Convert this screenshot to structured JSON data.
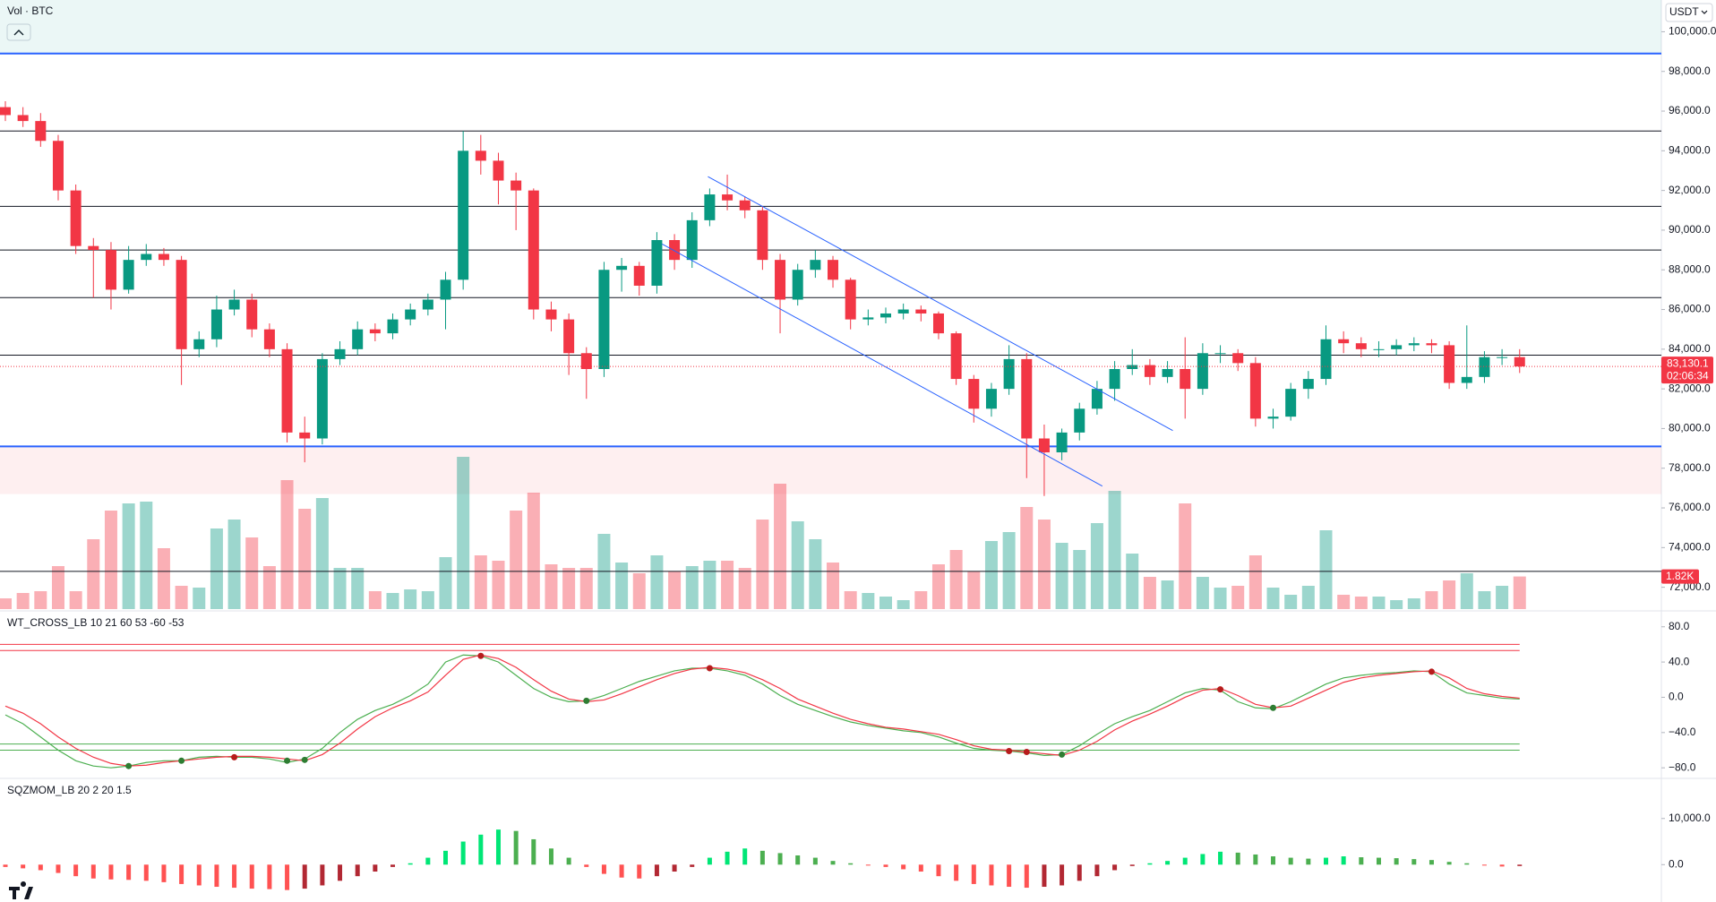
{
  "chart_data": [
    {
      "type": "candlestick",
      "title": "Vol · BTC",
      "currency": "USDT",
      "open": [
        96200,
        95800,
        95500,
        94500,
        92000,
        89200,
        89000,
        87000,
        88500,
        88800,
        88500,
        84000,
        84500,
        86000,
        86500,
        85000,
        84000,
        79800,
        79500,
        83500,
        84000,
        85000,
        84800,
        85500,
        86000,
        86500,
        87500,
        94000,
        93500,
        92500,
        92000,
        86000,
        85500,
        83800,
        83000,
        88000,
        88200,
        87200,
        89500,
        88500,
        90500,
        91800,
        91500,
        91000,
        88500,
        86500,
        88000,
        88500,
        87500,
        85500,
        85600,
        85800,
        86000,
        85800,
        84800,
        82500,
        81000,
        82000,
        83500,
        79500,
        78800,
        79800,
        81000,
        82000,
        83000,
        83200,
        82600,
        83000,
        82000,
        83800,
        83800,
        83300,
        80500,
        80600,
        82000,
        82500,
        84500,
        84300,
        84000,
        84000,
        84200,
        84300,
        84200,
        82300,
        82600,
        83600,
        83600
      ],
      "high": [
        96500,
        96200,
        95900,
        94800,
        92300,
        89600,
        89400,
        89200,
        89300,
        89100,
        88700,
        84900,
        86700,
        87000,
        86800,
        85300,
        84300,
        80600,
        83800,
        84400,
        85400,
        85300,
        85800,
        86300,
        86800,
        87900,
        95000,
        94800,
        93900,
        92900,
        92100,
        86400,
        85800,
        84100,
        88400,
        88600,
        88400,
        89900,
        89800,
        90900,
        92100,
        92800,
        91700,
        91200,
        88800,
        88300,
        89000,
        88700,
        87600,
        86000,
        86100,
        86300,
        86200,
        85900,
        84900,
        82700,
        82300,
        84200,
        83800,
        80200,
        80000,
        81300,
        82400,
        83400,
        84000,
        83500,
        83400,
        84600,
        84300,
        84200,
        84000,
        83600,
        81000,
        82300,
        82900,
        85200,
        84900,
        84600,
        84400,
        84500,
        84600,
        84500,
        84400,
        85200,
        83900,
        84000,
        84000
      ],
      "low": [
        95500,
        95200,
        94200,
        91500,
        88800,
        86600,
        86000,
        86800,
        88200,
        88200,
        82200,
        83600,
        84100,
        85700,
        84600,
        83600,
        79300,
        78300,
        79200,
        83200,
        83700,
        84400,
        84500,
        85200,
        85700,
        85000,
        87000,
        92800,
        91300,
        90000,
        85500,
        84900,
        82700,
        81500,
        82600,
        86900,
        86700,
        86800,
        88000,
        88100,
        90200,
        91000,
        90600,
        88000,
        84800,
        86200,
        87600,
        87100,
        85000,
        85200,
        85300,
        85500,
        85400,
        84500,
        82200,
        80300,
        80600,
        81700,
        77500,
        76600,
        78400,
        79400,
        80700,
        81400,
        82700,
        82200,
        82300,
        80500,
        81700,
        83300,
        82900,
        80100,
        80000,
        80400,
        81500,
        82200,
        83800,
        83600,
        83600,
        83700,
        83900,
        83800,
        82000,
        82000,
        82300,
        83200,
        82800
      ],
      "close": [
        95800,
        95500,
        94500,
        92000,
        89200,
        89000,
        87000,
        88500,
        88800,
        88500,
        84000,
        84500,
        86000,
        86500,
        85000,
        84000,
        79800,
        79500,
        83500,
        84000,
        85000,
        84800,
        85500,
        86000,
        86500,
        87500,
        94000,
        93500,
        92500,
        92000,
        86000,
        85500,
        83800,
        83000,
        88000,
        88200,
        87200,
        89500,
        88500,
        90500,
        91800,
        91500,
        91000,
        88500,
        86500,
        88000,
        88500,
        87500,
        85500,
        85600,
        85800,
        86000,
        85800,
        84800,
        82500,
        81000,
        82000,
        83500,
        79500,
        78800,
        79800,
        81000,
        82000,
        83000,
        83200,
        82600,
        83000,
        82000,
        83800,
        83800,
        83300,
        80500,
        80600,
        82000,
        82500,
        84500,
        84300,
        84000,
        84000,
        84200,
        84300,
        84200,
        82300,
        82600,
        83600,
        83600,
        83130.1
      ],
      "volume": [
        600,
        900,
        1000,
        2400,
        1000,
        3900,
        5500,
        5900,
        6000,
        3400,
        1300,
        1200,
        4500,
        5000,
        4000,
        2400,
        7200,
        5600,
        6200,
        2300,
        2300,
        1000,
        900,
        1100,
        1000,
        2900,
        8500,
        3000,
        2700,
        5500,
        6500,
        2500,
        2300,
        2300,
        4200,
        2600,
        2000,
        3000,
        2100,
        2400,
        2700,
        2700,
        2300,
        5000,
        7000,
        4900,
        3900,
        2600,
        1000,
        900,
        700,
        500,
        1000,
        2500,
        3300,
        2100,
        3800,
        4300,
        5700,
        5000,
        3700,
        3300,
        4800,
        6600,
        3100,
        1800,
        1600,
        5900,
        1800,
        1200,
        1300,
        3000,
        1200,
        800,
        1300,
        4400,
        800,
        700,
        700,
        500,
        600,
        1000,
        1600,
        2000,
        1000,
        1300,
        1820
      ],
      "volume_lim": [
        0,
        11000
      ],
      "volume_value_label": "1.82K",
      "last_price_label": "83,130.1",
      "countdown": "02:06:34",
      "up_color": "#089981",
      "down_color": "#f23645",
      "ylim": [
        70900,
        101600
      ],
      "yticks": [
        {
          "value": 100000,
          "label": "100,000.0"
        },
        {
          "value": 98000,
          "label": "98,000.0"
        },
        {
          "value": 96000,
          "label": "96,000.0"
        },
        {
          "value": 94000,
          "label": "94,000.0"
        },
        {
          "value": 92000,
          "label": "92,000.0"
        },
        {
          "value": 90000,
          "label": "90,000.0"
        },
        {
          "value": 88000,
          "label": "88,000.0"
        },
        {
          "value": 86000,
          "label": "86,000.0"
        },
        {
          "value": 84000,
          "label": "84,000.0"
        },
        {
          "value": 82000,
          "label": "82,000.0"
        },
        {
          "value": 80000,
          "label": "80,000.0"
        },
        {
          "value": 78000,
          "label": "78,000.0"
        },
        {
          "value": 76000,
          "label": "76,000.0"
        },
        {
          "value": 74000,
          "label": "74,000.0"
        },
        {
          "value": 72000,
          "label": "72,000.0"
        }
      ],
      "hlines": [
        {
          "value": 98900,
          "color": "#2962ff"
        },
        {
          "value": 95000,
          "color": "#131722"
        },
        {
          "value": 91200,
          "color": "#131722"
        },
        {
          "value": 89000,
          "color": "#131722"
        },
        {
          "value": 86600,
          "color": "#131722"
        },
        {
          "value": 83700,
          "color": "#131722"
        },
        {
          "value": 79100,
          "color": "#2962ff"
        },
        {
          "value": 72800,
          "color": "#131722"
        }
      ],
      "zones": [
        {
          "from": 98900,
          "to": 101600,
          "color": "rgba(0,150,136,0.08)"
        },
        {
          "from": 76700,
          "to": 79100,
          "color": "rgba(242,54,69,0.08)"
        }
      ],
      "trendlines": [
        {
          "from": [
            39.9,
            92700
          ],
          "to": [
            66.3,
            79900
          ],
          "color": "#2962ff"
        },
        {
          "from": [
            37.3,
            89300
          ],
          "to": [
            62.3,
            77100
          ],
          "color": "#2962ff"
        }
      ]
    },
    {
      "type": "line",
      "title": "WT_CROSS_LB 10 21 60 53 -60 -53",
      "series": [
        {
          "color": "#4caf50",
          "values": [
            -20,
            -30,
            -45,
            -60,
            -72,
            -78,
            -80,
            -78,
            -74,
            -72,
            -72,
            -68,
            -67,
            -68,
            -68,
            -70,
            -74,
            -70,
            -58,
            -40,
            -25,
            -15,
            -8,
            2,
            15,
            40,
            48,
            47,
            40,
            25,
            10,
            0,
            -5,
            -4,
            2,
            10,
            18,
            24,
            30,
            33,
            33,
            30,
            25,
            15,
            2,
            -8,
            -15,
            -22,
            -28,
            -32,
            -35,
            -38,
            -40,
            -45,
            -52,
            -58,
            -60,
            -61,
            -63,
            -66,
            -65,
            -55,
            -42,
            -30,
            -22,
            -15,
            -5,
            5,
            10,
            8,
            -5,
            -12,
            -13,
            -5,
            5,
            15,
            22,
            25,
            27,
            28,
            30,
            29,
            15,
            5,
            2,
            -1,
            -2
          ]
        },
        {
          "color": "#f23645",
          "values": [
            -10,
            -18,
            -30,
            -45,
            -58,
            -68,
            -75,
            -78,
            -77,
            -74,
            -72,
            -70,
            -68,
            -67,
            -67,
            -68,
            -70,
            -72,
            -65,
            -52,
            -36,
            -22,
            -12,
            -4,
            6,
            25,
            43,
            48,
            44,
            34,
            20,
            7,
            -2,
            -5,
            -3,
            4,
            12,
            20,
            27,
            32,
            34,
            32,
            28,
            20,
            10,
            -2,
            -10,
            -18,
            -25,
            -30,
            -34,
            -36,
            -39,
            -42,
            -48,
            -55,
            -59,
            -60,
            -62,
            -64,
            -66,
            -60,
            -50,
            -37,
            -27,
            -19,
            -10,
            0,
            8,
            10,
            2,
            -8,
            -12,
            -10,
            -1,
            8,
            17,
            22,
            25,
            27,
            29,
            30,
            22,
            10,
            4,
            1,
            -1
          ]
        }
      ],
      "crosses": [
        null,
        null,
        null,
        null,
        null,
        null,
        null,
        -78,
        null,
        null,
        -72,
        null,
        null,
        -68,
        null,
        null,
        -72,
        -71,
        null,
        null,
        null,
        null,
        null,
        null,
        null,
        null,
        null,
        47,
        null,
        null,
        null,
        null,
        null,
        -4,
        null,
        null,
        null,
        null,
        null,
        null,
        33,
        null,
        null,
        null,
        null,
        null,
        null,
        null,
        null,
        null,
        null,
        null,
        null,
        null,
        null,
        null,
        null,
        -61,
        -62,
        null,
        -65,
        null,
        null,
        null,
        null,
        null,
        null,
        null,
        null,
        9,
        null,
        null,
        -12,
        null,
        null,
        null,
        null,
        null,
        null,
        null,
        null,
        29,
        null,
        null,
        null,
        null,
        null
      ],
      "levels": [
        {
          "value": 60,
          "color": "#f23645"
        },
        {
          "value": 53,
          "color": "#f23645"
        },
        {
          "value": -53,
          "color": "#4caf50"
        },
        {
          "value": -60,
          "color": "#4caf50"
        }
      ],
      "ylim": [
        -91,
        96
      ],
      "yticks": [
        {
          "value": 80,
          "label": "80.0"
        },
        {
          "value": 40,
          "label": "40.0"
        },
        {
          "value": 0,
          "label": "0.0"
        },
        {
          "value": -40,
          "label": "−40.0"
        },
        {
          "value": -80,
          "label": "−80.0"
        }
      ]
    },
    {
      "type": "bar",
      "title": "SQZMOM_LB 20 2 20 1.5",
      "values": [
        -500,
        -800,
        -1200,
        -1800,
        -2500,
        -3000,
        -3200,
        -3300,
        -3500,
        -3800,
        -4200,
        -4500,
        -4800,
        -5000,
        -5200,
        -5300,
        -5500,
        -5200,
        -4500,
        -3500,
        -2500,
        -1500,
        -500,
        300,
        1500,
        3000,
        5000,
        6500,
        7600,
        7300,
        5500,
        3500,
        1500,
        -500,
        -2000,
        -2800,
        -3000,
        -2500,
        -1500,
        -500,
        1500,
        2800,
        3500,
        3000,
        2500,
        2000,
        1500,
        800,
        300,
        -200,
        -500,
        -1000,
        -1500,
        -2500,
        -3500,
        -4200,
        -4500,
        -4800,
        -5000,
        -4800,
        -4500,
        -3500,
        -2500,
        -1200,
        -300,
        300,
        800,
        1500,
        2300,
        2800,
        2600,
        2200,
        1800,
        1500,
        1300,
        1500,
        1800,
        1600,
        1500,
        1400,
        1200,
        1000,
        600,
        300,
        -200,
        -400,
        -300
      ],
      "colors": [
        "#00e676",
        "#4caf50",
        "#ff5252",
        "#b22833"
      ],
      "ylim": [
        -7900,
        18300
      ],
      "yticks": [
        {
          "value": 10000,
          "label": "10,000.0"
        },
        {
          "value": 0,
          "label": "0.0"
        }
      ]
    }
  ]
}
